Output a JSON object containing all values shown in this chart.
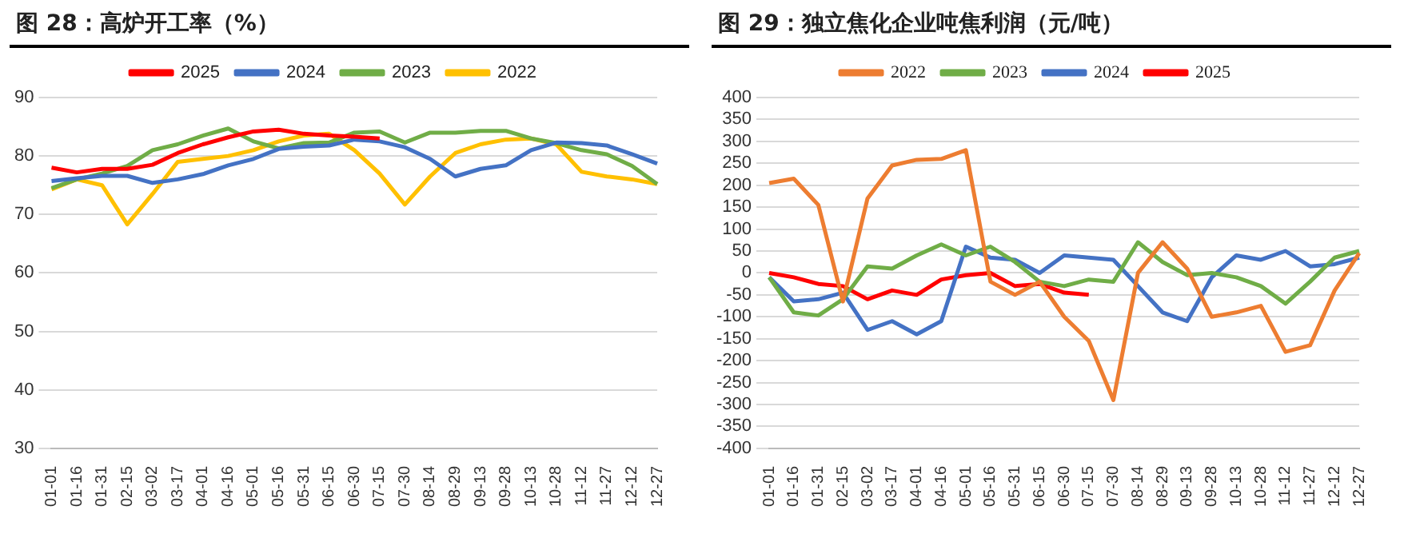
{
  "chart_data": [
    {
      "type": "line",
      "title": "图 28：高炉开工率（%）",
      "categories": [
        "01-01",
        "01-16",
        "01-31",
        "02-15",
        "03-02",
        "03-17",
        "04-01",
        "04-16",
        "05-01",
        "05-16",
        "05-31",
        "06-15",
        "06-30",
        "07-15",
        "07-30",
        "08-14",
        "08-29",
        "09-13",
        "09-28",
        "10-13",
        "10-28",
        "11-12",
        "11-27",
        "12-12",
        "12-27"
      ],
      "ylim": [
        30,
        90
      ],
      "yticks": [
        30,
        40,
        50,
        60,
        70,
        80,
        90
      ],
      "grid": "y",
      "legend": "top",
      "series": [
        {
          "name": "2025",
          "color": "#ff0000",
          "values": [
            78,
            77.2,
            77.8,
            77.8,
            78.5,
            80.5,
            82,
            83.2,
            84.2,
            84.5,
            83.8,
            83.5,
            83.3,
            83,
            null,
            null,
            null,
            null,
            null,
            null,
            null,
            null,
            null,
            null,
            null
          ]
        },
        {
          "name": "2024",
          "color": "#4472c4",
          "values": [
            75.7,
            76.2,
            76.6,
            76.6,
            75.4,
            76,
            76.9,
            78.4,
            79.5,
            81.2,
            81.6,
            81.8,
            82.8,
            82.5,
            81.5,
            79.5,
            76.5,
            77.8,
            78.4,
            81,
            82.3,
            82.2,
            81.8,
            80.3,
            78.7
          ]
        },
        {
          "name": "2023",
          "color": "#70ad47",
          "values": [
            74.5,
            76,
            77,
            78.3,
            81,
            82,
            83.5,
            84.7,
            82.5,
            81.3,
            82.2,
            82.3,
            84,
            84.2,
            82.3,
            84,
            84,
            84.3,
            84.3,
            83,
            82.2,
            81,
            80.3,
            78.3,
            75.2
          ]
        },
        {
          "name": "2022",
          "color": "#ffc000",
          "values": [
            74.3,
            76,
            75,
            68.3,
            73.5,
            79,
            79.5,
            80,
            81,
            82.5,
            83.5,
            83.8,
            81,
            77,
            71.7,
            76.5,
            80.5,
            82,
            82.8,
            83,
            82,
            77.3,
            76.5,
            76,
            75.2
          ]
        }
      ]
    },
    {
      "type": "line",
      "title": "图 29：独立焦化企业吨焦利润（元/吨）",
      "categories": [
        "01-01",
        "01-16",
        "01-31",
        "02-15",
        "03-02",
        "03-17",
        "04-01",
        "04-16",
        "05-01",
        "05-16",
        "05-31",
        "06-15",
        "06-30",
        "07-15",
        "07-30",
        "08-14",
        "08-29",
        "09-13",
        "09-28",
        "10-13",
        "10-28",
        "11-12",
        "11-27",
        "12-12",
        "12-27"
      ],
      "ylim": [
        -400,
        400
      ],
      "yticks": [
        -400,
        -350,
        -300,
        -250,
        -200,
        -150,
        -100,
        -50,
        0,
        50,
        100,
        150,
        200,
        250,
        300,
        350,
        400
      ],
      "grid": "y",
      "legend": "top",
      "series": [
        {
          "name": "2022",
          "color": "#ed7d31",
          "values": [
            205,
            215,
            155,
            -65,
            170,
            245,
            258,
            260,
            280,
            -20,
            -50,
            -20,
            -100,
            -155,
            -290,
            0,
            70,
            10,
            -100,
            -90,
            -75,
            -180,
            -165,
            -40,
            45
          ]
        },
        {
          "name": "2023",
          "color": "#70ad47",
          "values": [
            -10,
            -90,
            -97,
            -60,
            15,
            10,
            40,
            65,
            40,
            60,
            25,
            -20,
            -30,
            -15,
            -20,
            70,
            25,
            -5,
            0,
            -10,
            -30,
            -70,
            -20,
            35,
            50
          ]
        },
        {
          "name": "2024",
          "color": "#4472c4",
          "values": [
            -10,
            -65,
            -60,
            -45,
            -130,
            -110,
            -140,
            -110,
            60,
            35,
            30,
            0,
            40,
            35,
            30,
            -30,
            -90,
            -110,
            -10,
            40,
            30,
            50,
            15,
            20,
            35
          ]
        },
        {
          "name": "2025",
          "color": "#ff0000",
          "values": [
            0,
            -10,
            -25,
            -30,
            -60,
            -40,
            -50,
            -15,
            -5,
            0,
            -30,
            -25,
            -45,
            -50,
            null,
            null,
            null,
            null,
            null,
            null,
            null,
            null,
            null,
            null,
            null
          ]
        }
      ]
    }
  ]
}
